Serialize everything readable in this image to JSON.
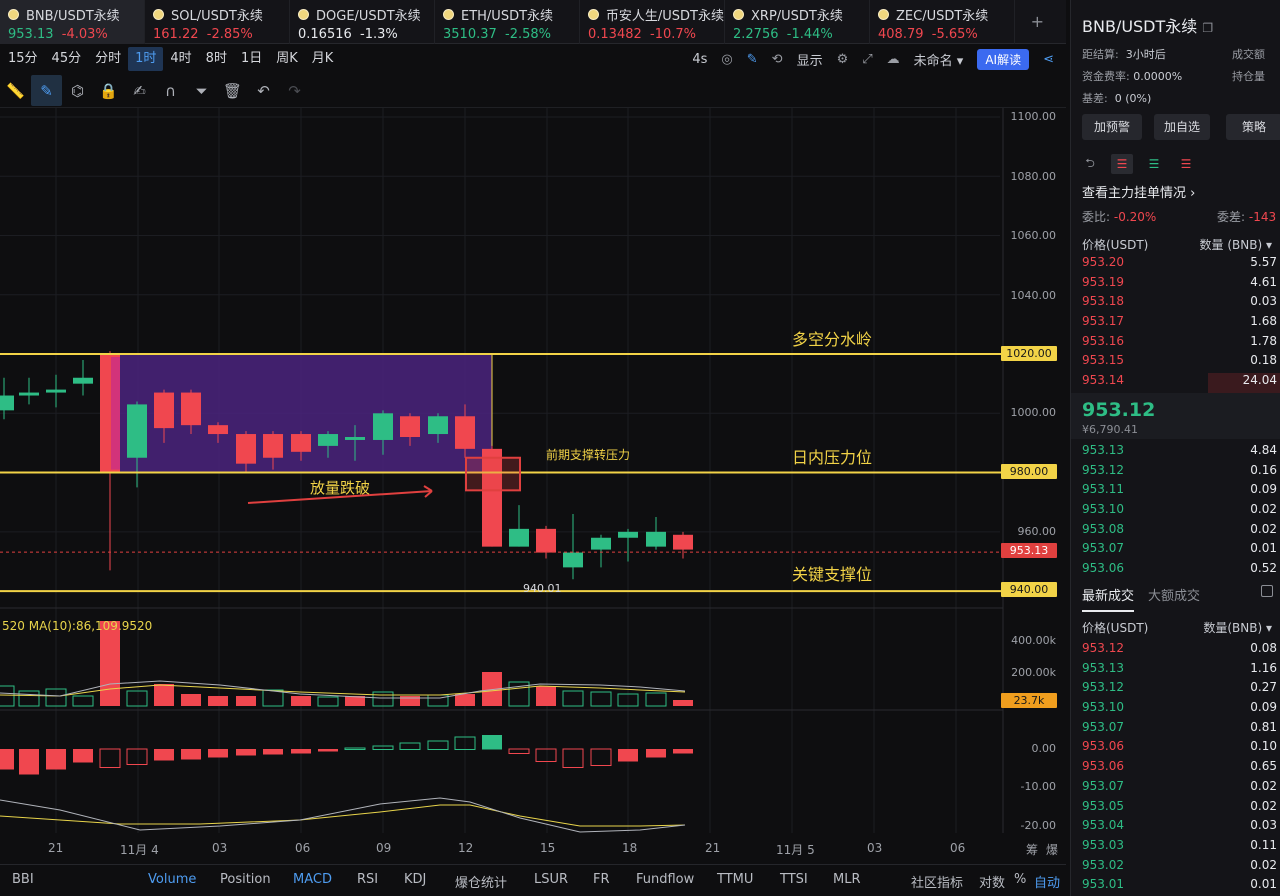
{
  "tabs": [
    {
      "name": "BNB/USDT永续",
      "price": "953.13",
      "change": "-4.03%",
      "pc": "up",
      "cc": "dn"
    },
    {
      "name": "SOL/USDT永续",
      "price": "161.22",
      "change": "-2.85%",
      "pc": "dn",
      "cc": "dn"
    },
    {
      "name": "DOGE/USDT永续",
      "price": "0.16516",
      "change": "-1.3%",
      "pc": "wh",
      "cc": "wh"
    },
    {
      "name": "ETH/USDT永续",
      "price": "3510.37",
      "change": "-2.58%",
      "pc": "up",
      "cc": "up"
    },
    {
      "name": "币安人生/USDT永续",
      "price": "0.13482",
      "change": "-10.7%",
      "pc": "dn",
      "cc": "dn"
    },
    {
      "name": "XRP/USDT永续",
      "price": "2.2756",
      "change": "-1.44%",
      "pc": "up",
      "cc": "up"
    },
    {
      "name": "ZEC/USDT永续",
      "price": "408.79",
      "change": "-5.65%",
      "pc": "dn",
      "cc": "dn"
    }
  ],
  "timeframes": [
    "15分",
    "45分",
    "分时",
    "1时",
    "4时",
    "8时",
    "1日",
    "周K",
    "月K"
  ],
  "selected_timeframe": "1时",
  "toolbar_right": {
    "interval": "4s",
    "display": "显示",
    "layout": "未命名",
    "ai": "AI解读"
  },
  "chart": {
    "y_labels": [
      "1100.00",
      "1080.00",
      "1060.00",
      "1040.00",
      "1000.00",
      "960.00"
    ],
    "y_boxes": {
      "l1020": "1020.00",
      "l980": "980.00",
      "cur": "953.13",
      "l940": "940.00"
    },
    "annotations": {
      "top": "多空分水岭",
      "mid": "日内压力位",
      "low": "关键支撑位",
      "small": "前期支撑转压力",
      "arrow": "放量跌破"
    },
    "low_tag": "940.01",
    "ma_text": "520  MA(10):86,109.9520",
    "vol_labels": {
      "v400": "400.00k",
      "v200": "200.00k",
      "vcur": "23.7k"
    },
    "macd_labels": {
      "m0": "0.00",
      "m10": "-10.00",
      "m20": "-20.00"
    },
    "x_labels": [
      "21",
      "11月 4",
      "03",
      "06",
      "09",
      "12",
      "15",
      "18",
      "21",
      "11月 5",
      "03",
      "06",
      "筹",
      "爆"
    ]
  },
  "indicators": [
    "BBI",
    "Volume",
    "Position",
    "MACD",
    "RSI",
    "KDJ",
    "爆仓统计",
    "LSUR",
    "FR",
    "Fundflow",
    "TTMU",
    "TTSI",
    "MLR",
    "社区指标",
    "对数",
    "%",
    "自动"
  ],
  "side": {
    "title": "BNB/USDT永续",
    "settle_label": "距结算:",
    "settle_val": "3小时后",
    "vol_label": "成交额",
    "fund_label": "资金费率:",
    "fund_val": "0.0000%",
    "pos_label": "持仓量",
    "basis_label": "基差:",
    "basis_val": "0 (0%)",
    "btn1": "加预警",
    "btn2": "加自选",
    "btn3": "策略",
    "link": "查看主力挂单情况 ›",
    "wb_label": "委比:",
    "wb_val": "-0.20%",
    "wc_label": "委差:",
    "wc_val": "-143",
    "ob_price_hdr": "价格(USDT)",
    "ob_qty_hdr": "数量 (BNB) ▾",
    "asks": [
      [
        "953.20",
        "5.57"
      ],
      [
        "953.19",
        "4.61"
      ],
      [
        "953.18",
        "0.03"
      ],
      [
        "953.17",
        "1.68"
      ],
      [
        "953.16",
        "1.78"
      ],
      [
        "953.15",
        "0.18"
      ],
      [
        "953.14",
        "24.04"
      ]
    ],
    "last": "953.12",
    "last_cny": "¥6,790.41",
    "bids": [
      [
        "953.13",
        "4.84"
      ],
      [
        "953.12",
        "0.16"
      ],
      [
        "953.11",
        "0.09"
      ],
      [
        "953.10",
        "0.02"
      ],
      [
        "953.08",
        "0.02"
      ],
      [
        "953.07",
        "0.01"
      ],
      [
        "953.06",
        "0.52"
      ]
    ],
    "tab_latest": "最新成交",
    "tab_big": "大额成交",
    "tr_price_hdr": "价格(USDT)",
    "tr_qty_hdr": "数量(BNB) ▾",
    "trades": [
      [
        "953.12",
        "0.08",
        "dn"
      ],
      [
        "953.13",
        "1.16",
        "up"
      ],
      [
        "953.12",
        "0.27",
        "up"
      ],
      [
        "953.10",
        "0.09",
        "up"
      ],
      [
        "953.07",
        "0.81",
        "up"
      ],
      [
        "953.06",
        "0.10",
        "dn"
      ],
      [
        "953.06",
        "0.65",
        "dn"
      ],
      [
        "953.07",
        "0.02",
        "up"
      ],
      [
        "953.05",
        "0.02",
        "up"
      ],
      [
        "953.04",
        "0.03",
        "up"
      ],
      [
        "953.03",
        "0.11",
        "up"
      ],
      [
        "953.02",
        "0.02",
        "up"
      ],
      [
        "953.01",
        "0.01",
        "up"
      ]
    ]
  },
  "colors": {
    "up": "#2ebd85",
    "down": "#f0474f",
    "level": "#f2d347",
    "box": "#5a2d9a"
  }
}
